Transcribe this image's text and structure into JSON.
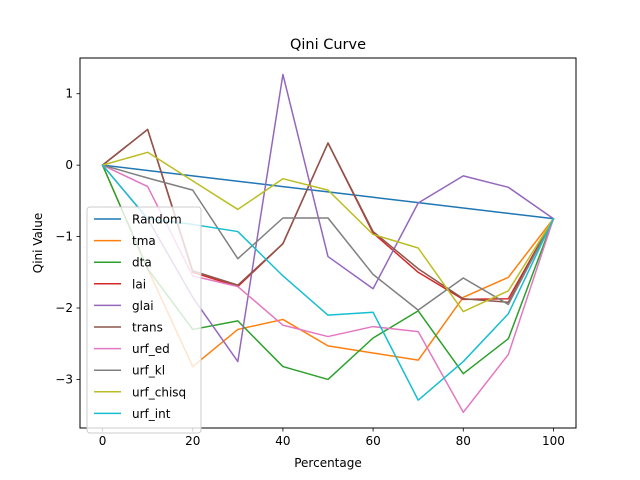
{
  "chart_data": {
    "type": "line",
    "title": "Qini Curve",
    "xlabel": "Percentage",
    "ylabel": "Qini Value",
    "xlim": [
      -5,
      105
    ],
    "ylim": [
      -3.68,
      1.5
    ],
    "xticks": [
      0,
      20,
      40,
      60,
      80,
      100
    ],
    "yticks": [
      1,
      0,
      -1,
      -2,
      -3
    ],
    "ytick_labels": [
      "1",
      "0",
      "−1",
      "−2",
      "−3"
    ],
    "grid": false,
    "legend_position": "lower-left",
    "x": [
      0,
      10,
      20,
      30,
      40,
      50,
      60,
      70,
      80,
      90,
      100
    ],
    "series": [
      {
        "name": "Random",
        "color": "#1f77b4",
        "values": [
          0,
          -0.075,
          -0.15,
          -0.225,
          -0.3,
          -0.375,
          -0.45,
          -0.525,
          -0.6,
          -0.675,
          -0.75
        ]
      },
      {
        "name": "tma",
        "color": "#ff7f0e",
        "values": [
          0,
          -1.45,
          -2.82,
          -2.3,
          -2.16,
          -2.53,
          -2.63,
          -2.73,
          -1.85,
          -1.57,
          -0.75
        ]
      },
      {
        "name": "dta",
        "color": "#2ca02c",
        "values": [
          0,
          -1.45,
          -2.3,
          -2.18,
          -2.82,
          -3.0,
          -2.42,
          -2.04,
          -2.92,
          -2.43,
          -0.75
        ]
      },
      {
        "name": "lai",
        "color": "#d62728",
        "values": [
          0,
          0.5,
          -1.5,
          -1.7,
          -1.1,
          0.31,
          -0.95,
          -1.5,
          -1.88,
          -1.87,
          -0.75
        ]
      },
      {
        "name": "glai",
        "color": "#9467bd",
        "values": [
          0,
          -0.75,
          -1.85,
          -2.75,
          1.27,
          -1.28,
          -1.73,
          -0.53,
          -0.15,
          -0.31,
          -0.75
        ]
      },
      {
        "name": "trans",
        "color": "#8c564b",
        "values": [
          0,
          0.5,
          -1.48,
          -1.68,
          -1.1,
          0.31,
          -0.93,
          -1.45,
          -1.87,
          -1.92,
          -0.75
        ]
      },
      {
        "name": "urf_ed",
        "color": "#e377c2",
        "values": [
          0,
          -0.3,
          -1.55,
          -1.7,
          -2.24,
          -2.4,
          -2.26,
          -2.33,
          -3.46,
          -2.65,
          -0.75
        ]
      },
      {
        "name": "urf_kl",
        "color": "#7f7f7f",
        "values": [
          0,
          -0.18,
          -0.35,
          -1.31,
          -0.74,
          -0.74,
          -1.53,
          -2.03,
          -1.58,
          -1.95,
          -0.75
        ]
      },
      {
        "name": "urf_chisq",
        "color": "#bcbd22",
        "values": [
          0,
          0.18,
          -0.22,
          -0.62,
          -0.19,
          -0.35,
          -0.97,
          -1.16,
          -2.05,
          -1.76,
          -0.75
        ]
      },
      {
        "name": "urf_int",
        "color": "#17becf",
        "values": [
          0,
          -0.75,
          -0.83,
          -0.93,
          -1.55,
          -2.1,
          -2.06,
          -3.29,
          -2.75,
          -2.08,
          -0.75
        ]
      }
    ]
  }
}
